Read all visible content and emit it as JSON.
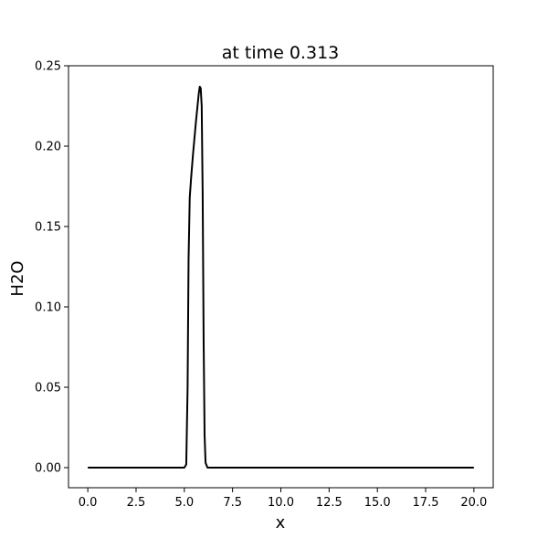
{
  "chart_data": {
    "type": "line",
    "title": "at time 0.313",
    "xlabel": "x",
    "ylabel": "H2O",
    "xlim": [
      -1.0,
      21.0
    ],
    "ylim": [
      -0.0125,
      0.25
    ],
    "grid": false,
    "x_ticks": [
      0.0,
      2.5,
      5.0,
      7.5,
      10.0,
      12.5,
      15.0,
      17.5,
      20.0
    ],
    "x_tick_labels": [
      "0.0",
      "2.5",
      "5.0",
      "7.5",
      "10.0",
      "12.5",
      "15.0",
      "17.5",
      "20.0"
    ],
    "y_ticks": [
      0.0,
      0.05,
      0.1,
      0.15,
      0.2,
      0.25
    ],
    "y_tick_labels": [
      "0.00",
      "0.05",
      "0.10",
      "0.15",
      "0.20",
      "0.25"
    ],
    "series": [
      {
        "color": "#000000",
        "x": [
          0.0,
          5.0,
          5.1,
          5.17,
          5.22,
          5.28,
          5.35,
          5.45,
          5.6,
          5.75,
          5.8,
          5.85,
          5.9,
          5.95,
          6.0,
          6.05,
          6.1,
          6.2,
          7.0,
          20.0
        ],
        "y": [
          0.0,
          0.0,
          0.002,
          0.05,
          0.13,
          0.168,
          0.18,
          0.195,
          0.215,
          0.233,
          0.237,
          0.236,
          0.225,
          0.17,
          0.08,
          0.02,
          0.003,
          0.0,
          0.0,
          0.0
        ]
      }
    ]
  }
}
